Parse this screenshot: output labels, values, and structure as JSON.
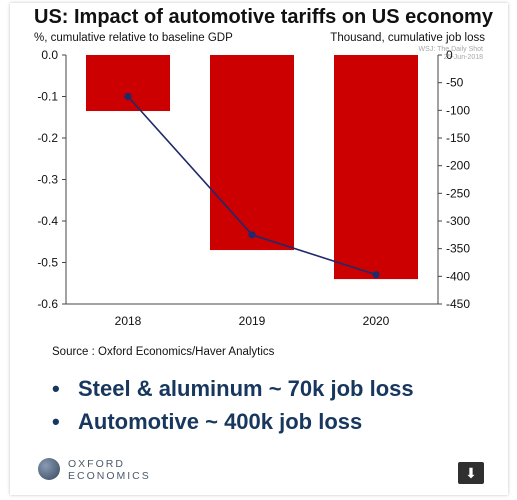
{
  "title": "US: Impact of automotive tariffs on US economy",
  "left_units": "%, cumulative relative to baseline GDP",
  "right_units": "Thousand, cumulative job loss",
  "watermark_line1": "WSJ: The Daily Shot",
  "watermark_line2": "25-Jun-2018",
  "source": "Source : Oxford Economics/Haver Analytics",
  "bullets": [
    {
      "symbol": "•",
      "text": "Steel & aluminum ~ 70k job loss"
    },
    {
      "symbol": "•",
      "text": "Automotive ~ 400k job loss"
    }
  ],
  "logo": {
    "line1": "OXFORD",
    "line2": "ECONOMICS"
  },
  "download": {
    "icon": "download-icon",
    "glyph": "⬇"
  },
  "colors": {
    "bar": "#cc0000",
    "line": "#1f2a6b",
    "text": "#111111",
    "bullet": "#17375e"
  },
  "chart_data": {
    "type": "bar",
    "title": "US: Impact of automotive tariffs on US economy",
    "categories": [
      "2018",
      "2019",
      "2020"
    ],
    "series": [
      {
        "axis": "left",
        "type": "bar",
        "values": [
          -0.135,
          -0.47,
          -0.54
        ]
      },
      {
        "axis": "right",
        "type": "line",
        "values": [
          -75,
          -325,
          -397
        ]
      }
    ],
    "y_left": {
      "label": "%, cumulative relative to baseline GDP",
      "lim": [
        -0.6,
        0.0
      ],
      "ticks": [
        0.0,
        -0.1,
        -0.2,
        -0.3,
        -0.4,
        -0.5,
        -0.6
      ],
      "tick_labels": [
        "0.0",
        "-0.1",
        "-0.2",
        "-0.3",
        "-0.4",
        "-0.5",
        "-0.6"
      ]
    },
    "y_right": {
      "label": "Thousand, cumulative job loss",
      "lim": [
        -450,
        0
      ],
      "ticks": [
        0,
        -50,
        -100,
        -150,
        -200,
        -250,
        -300,
        -350,
        -400,
        -450
      ],
      "tick_labels": [
        "0",
        "-50",
        "-100",
        "-150",
        "-200",
        "-250",
        "-300",
        "-350",
        "-400",
        "-450"
      ]
    },
    "grid": false,
    "legend": "none"
  }
}
